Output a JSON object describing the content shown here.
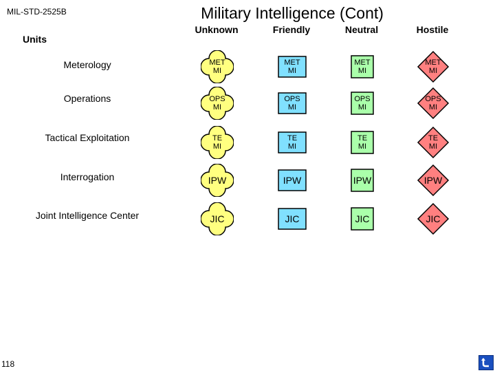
{
  "header": {
    "standard": "MIL-STD-2525B",
    "title": "Military Intelligence (Cont)",
    "units_label": "Units"
  },
  "columns": [
    {
      "label": "Unknown",
      "fill": "#ffff80"
    },
    {
      "label": "Friendly",
      "fill": "#80e0ff"
    },
    {
      "label": "Neutral",
      "fill": "#aaffaa"
    },
    {
      "label": "Hostile",
      "fill": "#ff8080"
    }
  ],
  "rows": [
    {
      "label": "Meterology",
      "line1": "MET",
      "line2": "MI"
    },
    {
      "label": "Operations",
      "line1": "OPS",
      "line2": "MI"
    },
    {
      "label": "Tactical Exploitation",
      "line1": "TE",
      "line2": "MI"
    },
    {
      "label": "Interrogation",
      "line1": "IPW",
      "line2": ""
    },
    {
      "label": "Joint Intelligence Center",
      "line1": "JIC",
      "line2": ""
    }
  ],
  "footer": {
    "page_number": "118",
    "back_icon": "return-arrow-icon"
  }
}
